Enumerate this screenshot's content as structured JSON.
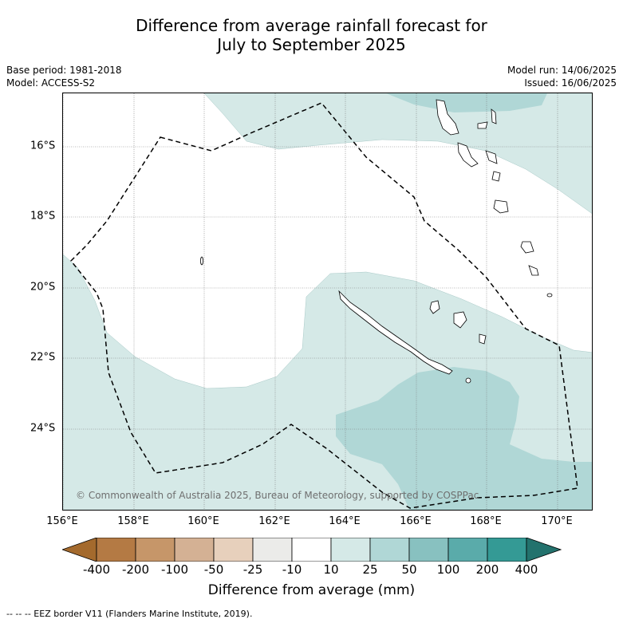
{
  "title": {
    "line1": "Difference from average rainfall forecast for",
    "line2": "July to September 2025"
  },
  "meta": {
    "base_period": "Base period: 1981-2018",
    "model": "Model: ACCESS-S2",
    "model_run": "Model run: 14/06/2025",
    "issued": "Issued: 16/06/2025"
  },
  "map": {
    "lat_labels": [
      "16°S",
      "18°S",
      "20°S",
      "22°S",
      "24°S"
    ],
    "lon_labels": [
      "156°E",
      "158°E",
      "160°E",
      "162°E",
      "164°E",
      "166°E",
      "168°E",
      "170°E"
    ],
    "copyright": "© Commonwealth of Australia 2025, Bureau of Meteorology, supported by COSPPac",
    "regions": [
      {
        "category": "10 to 25",
        "color": "#d5e9e7"
      },
      {
        "category": "25 to 50",
        "color": "#b0d7d6"
      }
    ],
    "eez_border": "dashed"
  },
  "colorbar": {
    "ticks": [
      "-400",
      "-200",
      "-100",
      "-50",
      "-25",
      "-10",
      "10",
      "25",
      "50",
      "100",
      "200",
      "400"
    ],
    "colors": [
      "#a46a2d",
      "#b47a44",
      "#c69669",
      "#d4b194",
      "#e7d0bc",
      "#ebebe9",
      "#ffffff",
      "#d5e9e7",
      "#b0d7d6",
      "#88c1c0",
      "#5aabaa",
      "#349a95",
      "#23726d"
    ],
    "label": "Difference from average (mm)"
  },
  "footnote": "-- -- -- EEZ border V11 (Flanders Marine Institute, 2019)."
}
